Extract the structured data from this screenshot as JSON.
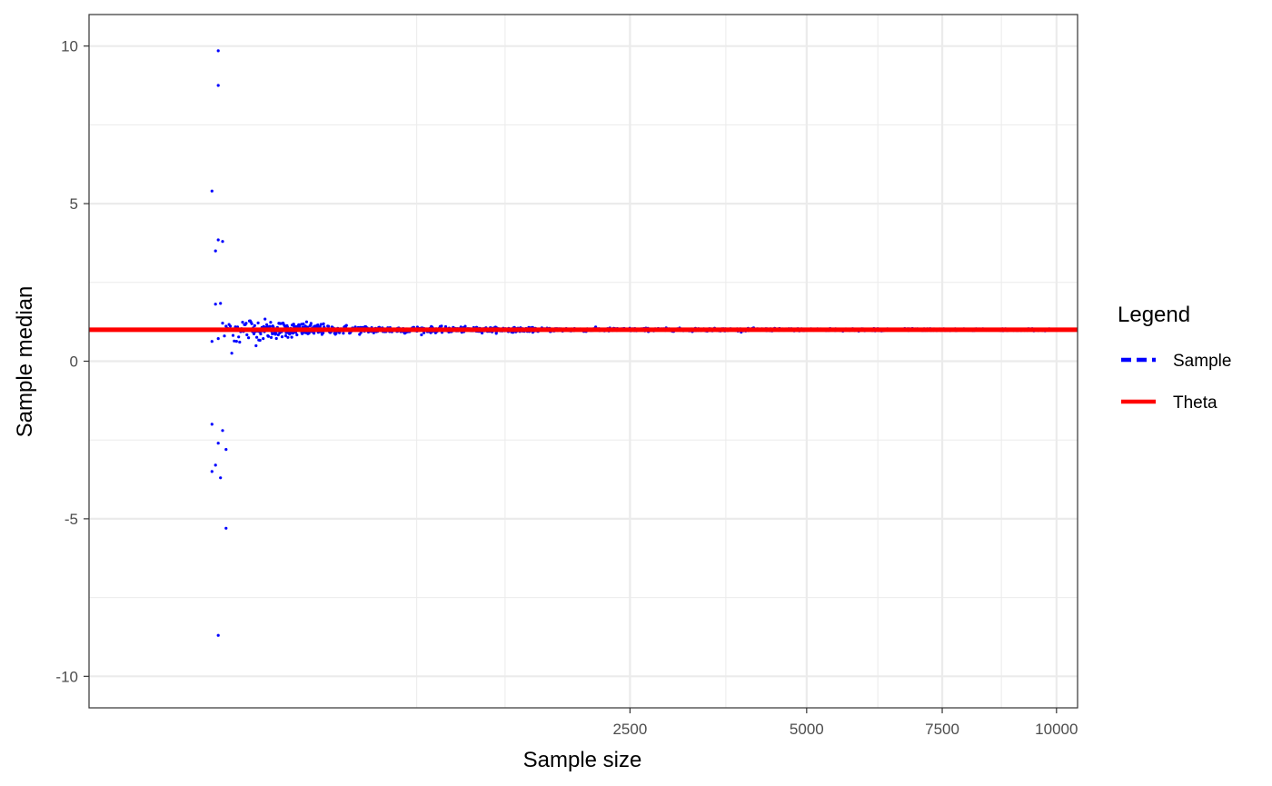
{
  "chart_data": {
    "type": "scatter",
    "title": "",
    "xlabel": "Sample size",
    "ylabel": "Sample median",
    "x_scale": "sqrt",
    "xlim": [
      -180,
      10500
    ],
    "ylim": [
      -11,
      11
    ],
    "x_ticks": [
      2500,
      5000,
      7500,
      10000
    ],
    "x_minor_gridlines": [
      625,
      1250,
      3750,
      6250,
      8750
    ],
    "y_ticks": [
      -10,
      -5,
      0,
      5,
      10
    ],
    "y_minor_gridlines": [
      -7.5,
      -2.5,
      2.5,
      7.5
    ],
    "grid": true,
    "legend": {
      "title": "Legend",
      "position": "right",
      "entries": [
        {
          "label": "Sample",
          "color": "#0000ff",
          "style": "dashed"
        },
        {
          "label": "Theta",
          "color": "#ff0000",
          "style": "solid"
        }
      ]
    },
    "series": [
      {
        "name": "Sample",
        "kind": "points",
        "color": "#0000ff",
        "description_points_x_range": [
          1,
          10000
        ],
        "outliers": [
          {
            "x": 3,
            "y": 9.85
          },
          {
            "x": 3,
            "y": 8.75
          },
          {
            "x": 1,
            "y": 5.4
          },
          {
            "x": 3,
            "y": 3.85
          },
          {
            "x": 5,
            "y": 3.8
          },
          {
            "x": 2,
            "y": 3.5
          },
          {
            "x": 1,
            "y": -2.0
          },
          {
            "x": 5,
            "y": -2.2
          },
          {
            "x": 3,
            "y": -2.6
          },
          {
            "x": 7,
            "y": -2.8
          },
          {
            "x": 2,
            "y": -3.3
          },
          {
            "x": 1,
            "y": -3.5
          },
          {
            "x": 4,
            "y": -3.7
          },
          {
            "x": 7,
            "y": -5.3
          },
          {
            "x": 3,
            "y": -8.7
          }
        ],
        "spread_model": {
          "center": 1.0,
          "scale": 1.2
        }
      },
      {
        "name": "Theta",
        "kind": "hline",
        "color": "#ff0000",
        "y": 1
      }
    ]
  }
}
